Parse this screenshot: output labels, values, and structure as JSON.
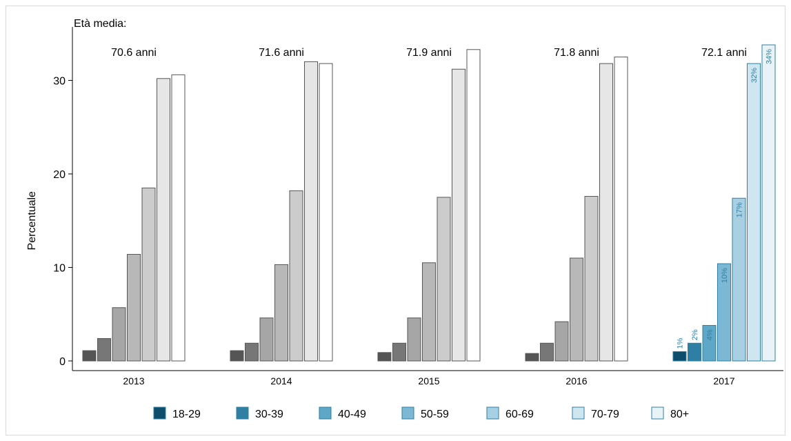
{
  "chart_data": {
    "type": "bar",
    "ylabel": "Percentuale",
    "ylim": [
      0,
      35
    ],
    "yticks": [
      0,
      10,
      20,
      30
    ],
    "age_title": "Età media:",
    "categories": [
      "2013",
      "2014",
      "2015",
      "2016",
      "2017"
    ],
    "mean_age_labels": [
      "70.6 anni",
      "71.6 anni",
      "71.9 anni",
      "71.8 anni",
      "72.1 anni"
    ],
    "highlight_category": "2017",
    "series": [
      {
        "name": "18-29",
        "values": [
          1.1,
          1.1,
          0.9,
          0.8,
          1.0
        ],
        "gray": "#555555",
        "color": "#0e4d6b"
      },
      {
        "name": "30-39",
        "values": [
          2.4,
          1.9,
          1.9,
          1.9,
          1.9
        ],
        "gray": "#777777",
        "color": "#2f7fa5"
      },
      {
        "name": "40-49",
        "values": [
          5.7,
          4.6,
          4.6,
          4.2,
          3.8
        ],
        "gray": "#a6a6a6",
        "color": "#5fa7c6"
      },
      {
        "name": "50-59",
        "values": [
          11.4,
          10.3,
          10.5,
          11.0,
          10.4
        ],
        "gray": "#b8b8b8",
        "color": "#7cb8d3"
      },
      {
        "name": "60-69",
        "values": [
          18.5,
          18.2,
          17.5,
          17.6,
          17.4
        ],
        "gray": "#cccccc",
        "color": "#a9cfe2"
      },
      {
        "name": "70-79",
        "values": [
          30.2,
          32.0,
          31.2,
          31.8,
          31.8
        ],
        "gray": "#e6e6e6",
        "color": "#cfe5ef"
      },
      {
        "name": "80+",
        "values": [
          30.6,
          31.8,
          33.3,
          32.5,
          33.8
        ],
        "gray": "#ffffff",
        "color": "#e8f3f8"
      }
    ],
    "highlight_bar_labels": [
      "1%",
      "2%",
      "4%",
      "10%",
      "17%",
      "32%",
      "34%"
    ],
    "legend_position": "bottom"
  }
}
